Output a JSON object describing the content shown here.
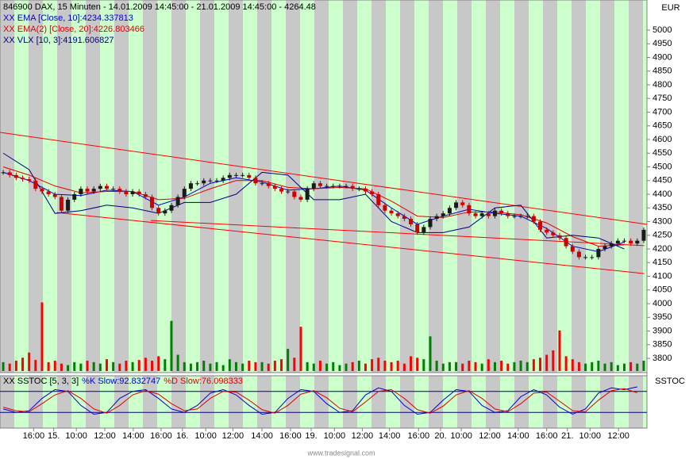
{
  "chart_data": [
    {
      "type": "candlestick",
      "title": "846900  DAX, 15 Minuten - 14.01.2009 14:45:00 - 21.01.2009 14:45:00 - 4264.48",
      "currency": "EUR",
      "x": [
        0,
        1,
        2,
        3,
        4,
        5,
        6,
        7,
        8,
        9,
        10,
        11,
        12,
        13,
        14,
        15,
        16,
        17,
        18,
        19,
        20,
        21,
        22,
        23,
        24,
        25,
        26,
        27,
        28,
        29,
        30,
        31,
        32,
        33,
        34,
        35,
        36,
        37,
        38,
        39,
        40,
        41,
        42,
        43,
        44,
        45,
        46,
        47,
        48,
        49,
        50,
        51,
        52,
        53,
        54,
        55,
        56,
        57,
        58,
        59,
        60,
        61,
        62,
        63,
        64,
        65,
        66,
        67,
        68,
        69,
        70,
        71,
        72,
        73,
        74,
        75,
        76,
        77,
        78,
        79,
        80,
        81,
        82,
        83,
        84,
        85,
        86,
        87,
        88,
        89,
        90,
        91,
        92,
        93,
        94,
        95,
        96,
        97,
        98,
        99
      ],
      "close": [
        4480,
        4470,
        4460,
        4455,
        4450,
        4420,
        4410,
        4400,
        4390,
        4340,
        4380,
        4400,
        4420,
        4410,
        4420,
        4430,
        4420,
        4420,
        4410,
        4400,
        4410,
        4400,
        4390,
        4350,
        4330,
        4340,
        4360,
        4390,
        4420,
        4440,
        4440,
        4450,
        4450,
        4450,
        4460,
        4470,
        4470,
        4470,
        4460,
        4440,
        4440,
        4430,
        4420,
        4410,
        4410,
        4390,
        4380,
        4420,
        4440,
        4430,
        4430,
        4430,
        4430,
        4430,
        4420,
        4420,
        4410,
        4400,
        4360,
        4340,
        4330,
        4320,
        4310,
        4290,
        4260,
        4280,
        4310,
        4320,
        4330,
        4350,
        4370,
        4360,
        4330,
        4320,
        4330,
        4320,
        4340,
        4330,
        4320,
        4320,
        4320,
        4320,
        4300,
        4270,
        4260,
        4250,
        4240,
        4210,
        4190,
        4170,
        4170,
        4170,
        4200,
        4210,
        4220,
        4230,
        4230,
        4220,
        4230,
        4270
      ],
      "volume": [
        12,
        10,
        14,
        18,
        25,
        15,
        93,
        12,
        14,
        10,
        8,
        12,
        10,
        14,
        12,
        10,
        16,
        12,
        10,
        14,
        12,
        15,
        18,
        14,
        20,
        16,
        68,
        22,
        12,
        10,
        12,
        14,
        10,
        12,
        8,
        16,
        12,
        10,
        14,
        12,
        12,
        10,
        14,
        16,
        30,
        18,
        60,
        12,
        10,
        14,
        10,
        12,
        8,
        10,
        12,
        14,
        10,
        16,
        18,
        14,
        12,
        14,
        10,
        20,
        18,
        16,
        47,
        14,
        10,
        12,
        12,
        10,
        14,
        12,
        10,
        16,
        12,
        14,
        10,
        12,
        14,
        12,
        16,
        18,
        22,
        28,
        55,
        20,
        16,
        12,
        10,
        12,
        14,
        10,
        12,
        8,
        10,
        12,
        10,
        14
      ],
      "volume_lim": [
        0,
        100
      ],
      "colors": {
        "up": "#1a1a1a",
        "down": "#cc0000",
        "volume_up": "#008000",
        "volume_down": "#ff0000"
      },
      "indicators": [
        {
          "name": "XX EMA [Close, 10]:4234.337813",
          "color": "#0000cc",
          "x": [
            0,
            4,
            8,
            12,
            16,
            20,
            24,
            28,
            32,
            36,
            40,
            44,
            48,
            52,
            56,
            60,
            64,
            68,
            72,
            76,
            80,
            84,
            88,
            92,
            96
          ],
          "values": [
            4480,
            4450,
            4400,
            4395,
            4415,
            4410,
            4360,
            4390,
            4440,
            4460,
            4445,
            4415,
            4420,
            4430,
            4415,
            4350,
            4290,
            4320,
            4345,
            4330,
            4320,
            4275,
            4210,
            4190,
            4225
          ]
        },
        {
          "name": "XX EMA(2) [Close, 20]:4226.803466",
          "color": "#dd0000",
          "x": [
            0,
            4,
            8,
            12,
            16,
            20,
            24,
            28,
            32,
            36,
            40,
            44,
            48,
            52,
            56,
            60,
            64,
            68,
            72,
            76,
            80,
            84,
            88,
            92,
            96
          ],
          "values": [
            4500,
            4470,
            4430,
            4405,
            4410,
            4410,
            4380,
            4385,
            4420,
            4450,
            4450,
            4425,
            4420,
            4425,
            4420,
            4375,
            4320,
            4315,
            4335,
            4335,
            4325,
            4295,
            4245,
            4210,
            4215
          ]
        },
        {
          "name": "XX VLX [10, 3]:4191.606827",
          "color": "#000080",
          "x": [
            0,
            4,
            8,
            12,
            16,
            20,
            24,
            28,
            32,
            36,
            40,
            44,
            48,
            52,
            56,
            60,
            64,
            68,
            72,
            76,
            80,
            84,
            88,
            92,
            96
          ],
          "values": [
            4550,
            4490,
            4330,
            4340,
            4360,
            4350,
            4330,
            4370,
            4370,
            4400,
            4480,
            4470,
            4380,
            4380,
            4400,
            4300,
            4260,
            4260,
            4280,
            4350,
            4360,
            4240,
            4250,
            4240,
            4200
          ]
        }
      ],
      "trendlines": [
        {
          "color": "#ff0000",
          "x": [
            0,
            100
          ],
          "values": [
            4626,
            4290
          ]
        },
        {
          "color": "#ff0000",
          "x": [
            8.8,
            99.6
          ],
          "values": [
            4333,
            4110
          ]
        },
        {
          "color": "#ff0000",
          "x": [
            23.3,
            99.6
          ],
          "values": [
            4304,
            4212
          ]
        }
      ],
      "xlim": [
        0,
        100
      ],
      "ylim": [
        3748,
        5110
      ],
      "yticks": [
        3800,
        3850,
        3900,
        3950,
        4000,
        4050,
        4100,
        4150,
        4200,
        4250,
        4300,
        4350,
        4400,
        4450,
        4500,
        4550,
        4600,
        4650,
        4700,
        4750,
        4800,
        4850,
        4900,
        4950,
        5000
      ],
      "xticks": [
        {
          "value": 5.2,
          "label": "16:00"
        },
        {
          "value": 8.3,
          "label": "15."
        },
        {
          "value": 11.8,
          "label": "10:00"
        },
        {
          "value": 16.2,
          "label": "12:00"
        },
        {
          "value": 20.6,
          "label": "14:00"
        },
        {
          "value": 24.9,
          "label": "16:00"
        },
        {
          "value": 28.2,
          "label": "16."
        },
        {
          "value": 31.8,
          "label": "10:00"
        },
        {
          "value": 36,
          "label": "12:00"
        },
        {
          "value": 40.5,
          "label": "14:00"
        },
        {
          "value": 44.9,
          "label": "16:00"
        },
        {
          "value": 48.1,
          "label": "19."
        },
        {
          "value": 51.7,
          "label": "10:00"
        },
        {
          "value": 56,
          "label": "12:00"
        },
        {
          "value": 60.2,
          "label": "14:00"
        },
        {
          "value": 64.7,
          "label": "16:00"
        },
        {
          "value": 68.1,
          "label": "20."
        },
        {
          "value": 71.3,
          "label": "10:00"
        },
        {
          "value": 75.7,
          "label": "12:00"
        },
        {
          "value": 80.1,
          "label": "14:00"
        },
        {
          "value": 84.5,
          "label": "16:00"
        },
        {
          "value": 87.7,
          "label": "21."
        },
        {
          "value": 91.2,
          "label": "10:00"
        },
        {
          "value": 95.6,
          "label": "12:00"
        }
      ]
    },
    {
      "type": "stochastic",
      "title": "XX SSTOC [5, 3, 3]",
      "axis_label": "SSTOC",
      "x": [
        0,
        2,
        4,
        6,
        8,
        10,
        12,
        14,
        16,
        18,
        20,
        22,
        24,
        26,
        28,
        30,
        32,
        34,
        36,
        38,
        40,
        42,
        44,
        46,
        48,
        50,
        52,
        54,
        56,
        58,
        60,
        62,
        64,
        66,
        68,
        70,
        72,
        74,
        76,
        78,
        80,
        82,
        84,
        86,
        88,
        90,
        92,
        94,
        96,
        98
      ],
      "series": [
        {
          "name": "%K Slow:92.832747",
          "color": "#0000cc",
          "values": [
            30,
            20,
            25,
            60,
            85,
            80,
            40,
            15,
            20,
            60,
            80,
            85,
            60,
            30,
            20,
            40,
            75,
            85,
            70,
            40,
            15,
            20,
            60,
            85,
            80,
            45,
            20,
            25,
            70,
            90,
            80,
            40,
            15,
            20,
            55,
            85,
            80,
            40,
            20,
            25,
            65,
            85,
            70,
            35,
            15,
            30,
            75,
            90,
            85,
            93
          ]
        },
        {
          "name": "%D Slow:76.098333",
          "color": "#dd0000",
          "values": [
            35,
            25,
            22,
            45,
            70,
            82,
            60,
            30,
            18,
            40,
            70,
            82,
            72,
            45,
            25,
            30,
            60,
            80,
            78,
            55,
            28,
            18,
            40,
            72,
            82,
            62,
            32,
            22,
            50,
            80,
            85,
            60,
            28,
            18,
            38,
            70,
            82,
            60,
            30,
            22,
            45,
            75,
            78,
            52,
            25,
            22,
            55,
            82,
            88,
            76
          ]
        }
      ],
      "levels": [
        20,
        80
      ],
      "xlim": [
        0,
        100
      ],
      "ylim": [
        -20,
        120
      ]
    }
  ],
  "footer": "www.tradesignal.com"
}
